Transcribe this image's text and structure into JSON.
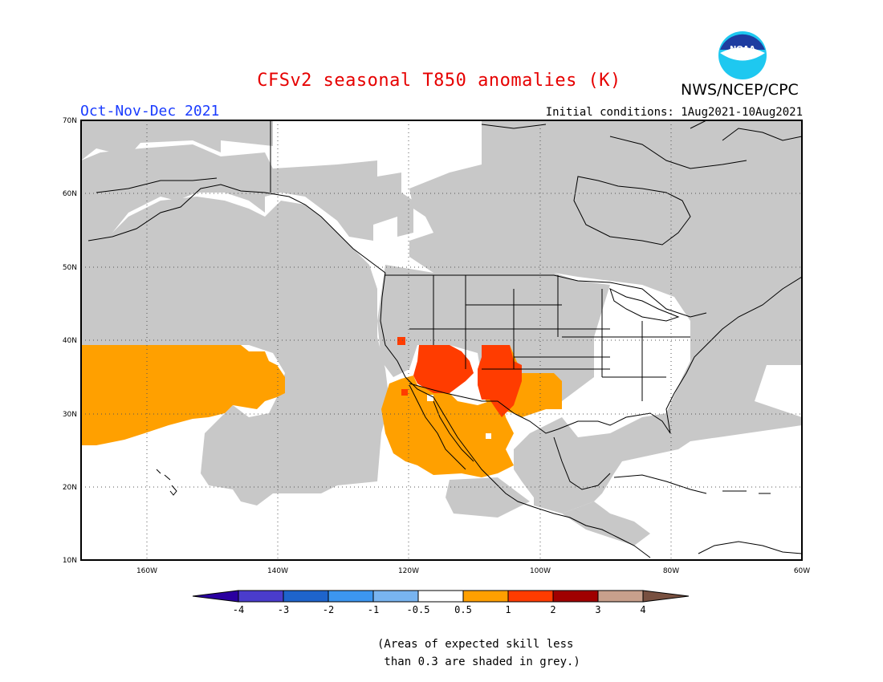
{
  "header": {
    "title": "CFSv2 seasonal T850 anomalies (K)",
    "agency": "NWS/NCEP/CPC",
    "logo_text": "NOAA",
    "period": "Oct-Nov-Dec 2021",
    "initial_conditions": "Initial conditions: 1Aug2021-10Aug2021"
  },
  "map": {
    "lat_ticks": [
      "70N",
      "60N",
      "50N",
      "40N",
      "30N",
      "20N",
      "10N"
    ],
    "lon_ticks": [
      "160W",
      "140W",
      "120W",
      "100W",
      "80W",
      "60W"
    ],
    "colors": {
      "land_skill_grey": "#c8c8c8",
      "ocean": "#ffffff",
      "anom_0_5_to_1": "#ffa000",
      "anom_1_to_2": "#ff3c00"
    }
  },
  "colorbar": {
    "labels": [
      "-4",
      "-3",
      "-2",
      "-1",
      "-0.5",
      "0.5",
      "1",
      "2",
      "3",
      "4"
    ],
    "colors": [
      "#2a00a0",
      "#4a3ccc",
      "#1e64cc",
      "#3c96f0",
      "#78b4f0",
      "#ffffff",
      "#ffa000",
      "#ff3c00",
      "#a00000",
      "#c8a08c",
      "#785040"
    ]
  },
  "footnote": "(Areas of expected skill less\n than 0.3 are shaded in grey.)"
}
